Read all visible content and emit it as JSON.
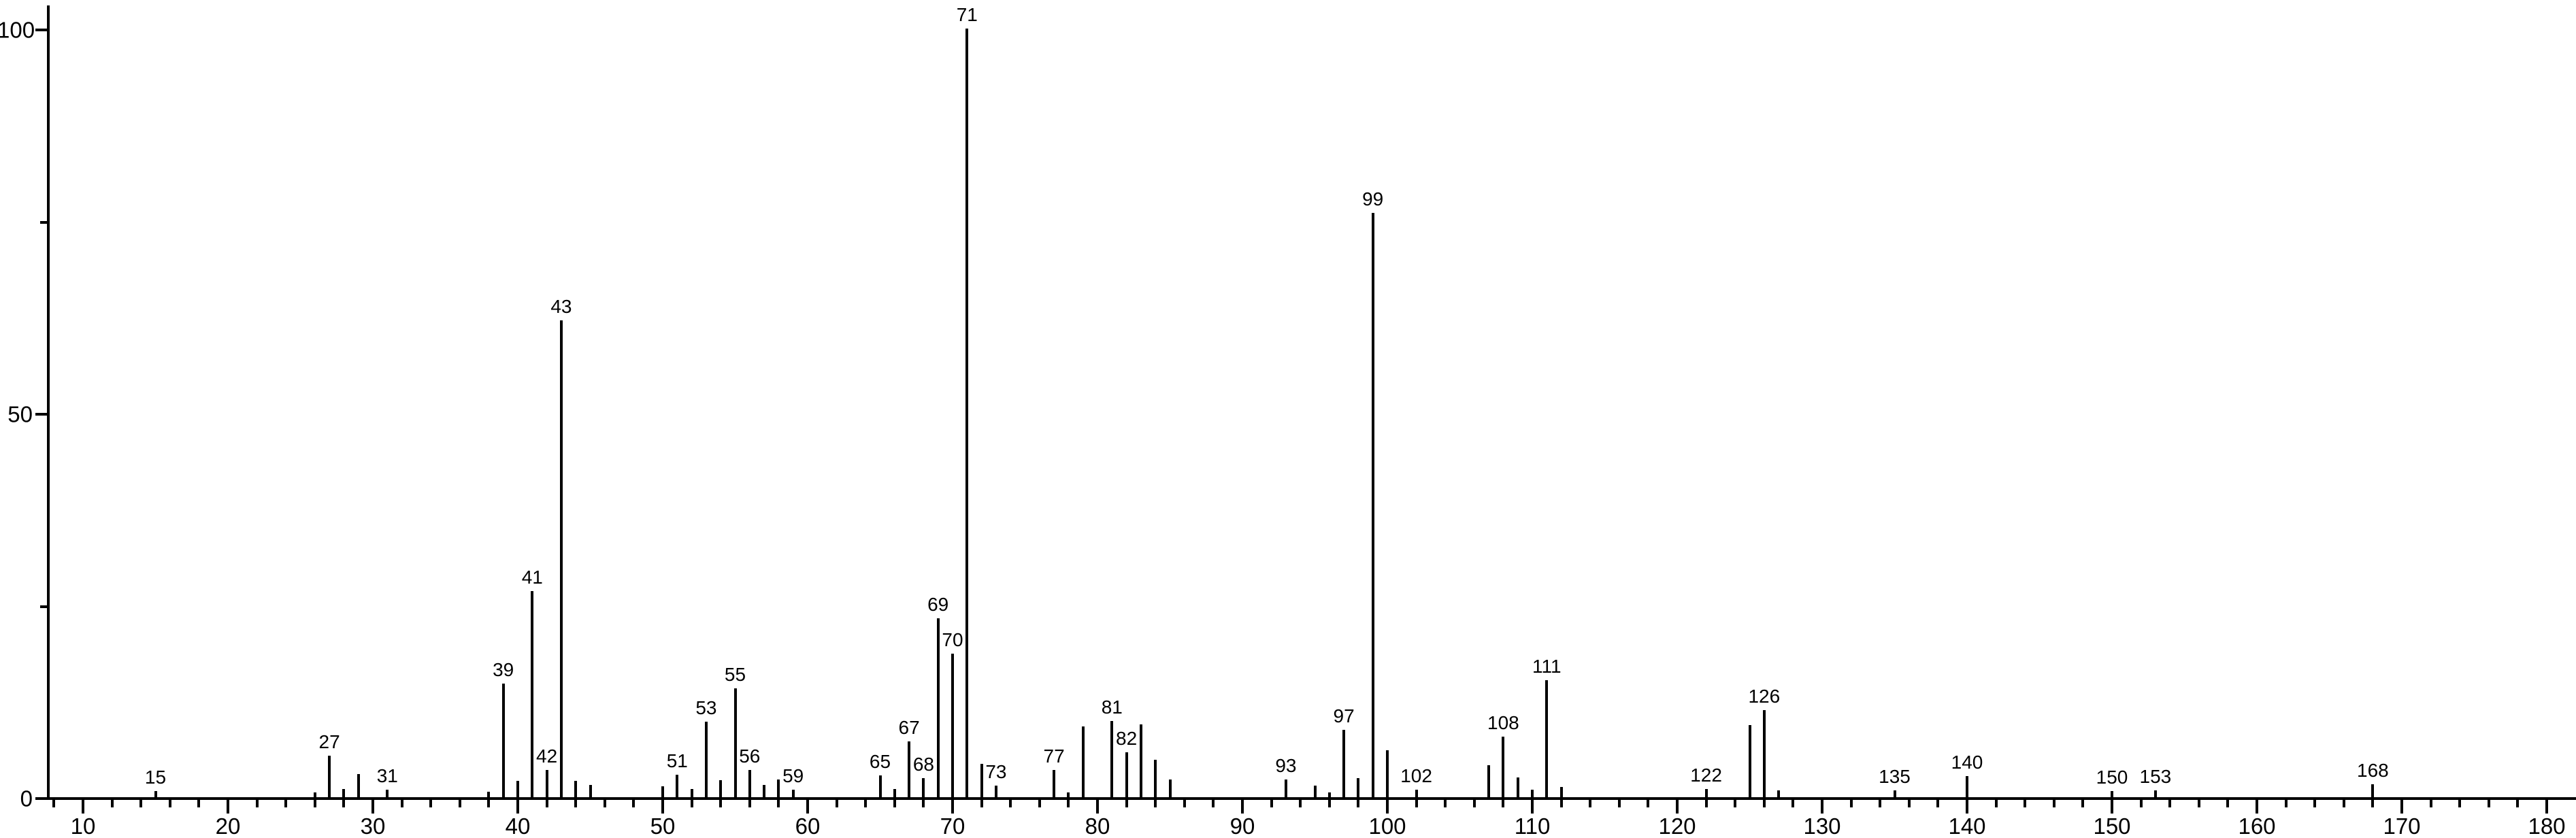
{
  "chart_data": {
    "type": "bar",
    "subtype": "mass-spectrum-stick-plot",
    "title": "",
    "xlabel": "",
    "ylabel": "",
    "background_color": "#ffffff",
    "line_color": "#000000",
    "x_axis": {
      "min": 7.5,
      "max": 182,
      "major_tick_start": 10,
      "major_tick_end": 180,
      "major_tick_step": 10,
      "minor_tick_step": 2,
      "tick_labels": [
        "10",
        "20",
        "30",
        "40",
        "50",
        "60",
        "70",
        "80",
        "90",
        "100",
        "110",
        "120",
        "130",
        "140",
        "150",
        "160",
        "170",
        "180"
      ]
    },
    "y_axis": {
      "min": 0,
      "max": 100,
      "major_ticks": [
        0,
        50,
        100
      ],
      "minor_ticks": [
        25,
        75
      ],
      "tick_labels": [
        "0",
        "50",
        "100"
      ]
    },
    "grid": false,
    "legend": false,
    "peaks": [
      {
        "mz": 15,
        "intensity": 0.8,
        "labeled": true
      },
      {
        "mz": 26,
        "intensity": 0.6,
        "labeled": false
      },
      {
        "mz": 27,
        "intensity": 5.4,
        "labeled": true
      },
      {
        "mz": 28,
        "intensity": 1.1,
        "labeled": false
      },
      {
        "mz": 29,
        "intensity": 3.0,
        "labeled": false
      },
      {
        "mz": 31,
        "intensity": 1.0,
        "labeled": true
      },
      {
        "mz": 38,
        "intensity": 0.7,
        "labeled": false
      },
      {
        "mz": 39,
        "intensity": 14.8,
        "labeled": true
      },
      {
        "mz": 40,
        "intensity": 2.1,
        "labeled": false
      },
      {
        "mz": 41,
        "intensity": 26.8,
        "labeled": true
      },
      {
        "mz": 42,
        "intensity": 3.5,
        "labeled": true
      },
      {
        "mz": 43,
        "intensity": 62.0,
        "labeled": true
      },
      {
        "mz": 44,
        "intensity": 2.1,
        "labeled": false
      },
      {
        "mz": 45,
        "intensity": 1.6,
        "labeled": false
      },
      {
        "mz": 50,
        "intensity": 1.4,
        "labeled": false
      },
      {
        "mz": 51,
        "intensity": 2.9,
        "labeled": true
      },
      {
        "mz": 52,
        "intensity": 1.1,
        "labeled": false
      },
      {
        "mz": 53,
        "intensity": 9.8,
        "labeled": true
      },
      {
        "mz": 54,
        "intensity": 2.2,
        "labeled": false
      },
      {
        "mz": 55,
        "intensity": 14.2,
        "labeled": true
      },
      {
        "mz": 56,
        "intensity": 3.5,
        "labeled": true
      },
      {
        "mz": 57,
        "intensity": 1.6,
        "labeled": false
      },
      {
        "mz": 58,
        "intensity": 2.3,
        "labeled": false
      },
      {
        "mz": 59,
        "intensity": 1.0,
        "labeled": true
      },
      {
        "mz": 65,
        "intensity": 2.8,
        "labeled": true
      },
      {
        "mz": 66,
        "intensity": 1.1,
        "labeled": false
      },
      {
        "mz": 67,
        "intensity": 7.3,
        "labeled": true
      },
      {
        "mz": 68,
        "intensity": 2.5,
        "labeled": true
      },
      {
        "mz": 69,
        "intensity": 23.3,
        "labeled": true
      },
      {
        "mz": 70,
        "intensity": 18.7,
        "labeled": true
      },
      {
        "mz": 71,
        "intensity": 100.0,
        "labeled": true
      },
      {
        "mz": 72,
        "intensity": 4.3,
        "labeled": false
      },
      {
        "mz": 73,
        "intensity": 1.5,
        "labeled": true
      },
      {
        "mz": 77,
        "intensity": 3.5,
        "labeled": true
      },
      {
        "mz": 78,
        "intensity": 0.6,
        "labeled": false
      },
      {
        "mz": 79,
        "intensity": 9.2,
        "labeled": false
      },
      {
        "mz": 81,
        "intensity": 9.9,
        "labeled": true
      },
      {
        "mz": 82,
        "intensity": 5.8,
        "labeled": true
      },
      {
        "mz": 83,
        "intensity": 9.5,
        "labeled": false
      },
      {
        "mz": 84,
        "intensity": 4.9,
        "labeled": false
      },
      {
        "mz": 85,
        "intensity": 2.3,
        "labeled": false
      },
      {
        "mz": 93,
        "intensity": 2.3,
        "labeled": true
      },
      {
        "mz": 95,
        "intensity": 1.5,
        "labeled": false
      },
      {
        "mz": 96,
        "intensity": 0.6,
        "labeled": false
      },
      {
        "mz": 97,
        "intensity": 8.8,
        "labeled": true
      },
      {
        "mz": 98,
        "intensity": 2.5,
        "labeled": false
      },
      {
        "mz": 99,
        "intensity": 76.0,
        "labeled": true
      },
      {
        "mz": 100,
        "intensity": 6.1,
        "labeled": false
      },
      {
        "mz": 102,
        "intensity": 1.0,
        "labeled": true
      },
      {
        "mz": 107,
        "intensity": 4.2,
        "labeled": false
      },
      {
        "mz": 108,
        "intensity": 7.9,
        "labeled": true
      },
      {
        "mz": 109,
        "intensity": 2.6,
        "labeled": false
      },
      {
        "mz": 110,
        "intensity": 1.0,
        "labeled": false
      },
      {
        "mz": 111,
        "intensity": 15.2,
        "labeled": true
      },
      {
        "mz": 112,
        "intensity": 1.3,
        "labeled": false
      },
      {
        "mz": 122,
        "intensity": 1.1,
        "labeled": true
      },
      {
        "mz": 125,
        "intensity": 9.4,
        "labeled": false
      },
      {
        "mz": 126,
        "intensity": 11.3,
        "labeled": true
      },
      {
        "mz": 127,
        "intensity": 0.9,
        "labeled": false
      },
      {
        "mz": 135,
        "intensity": 0.9,
        "labeled": true
      },
      {
        "mz": 140,
        "intensity": 2.7,
        "labeled": true
      },
      {
        "mz": 150,
        "intensity": 0.8,
        "labeled": true
      },
      {
        "mz": 153,
        "intensity": 0.9,
        "labeled": true
      },
      {
        "mz": 168,
        "intensity": 1.7,
        "labeled": true
      }
    ]
  }
}
